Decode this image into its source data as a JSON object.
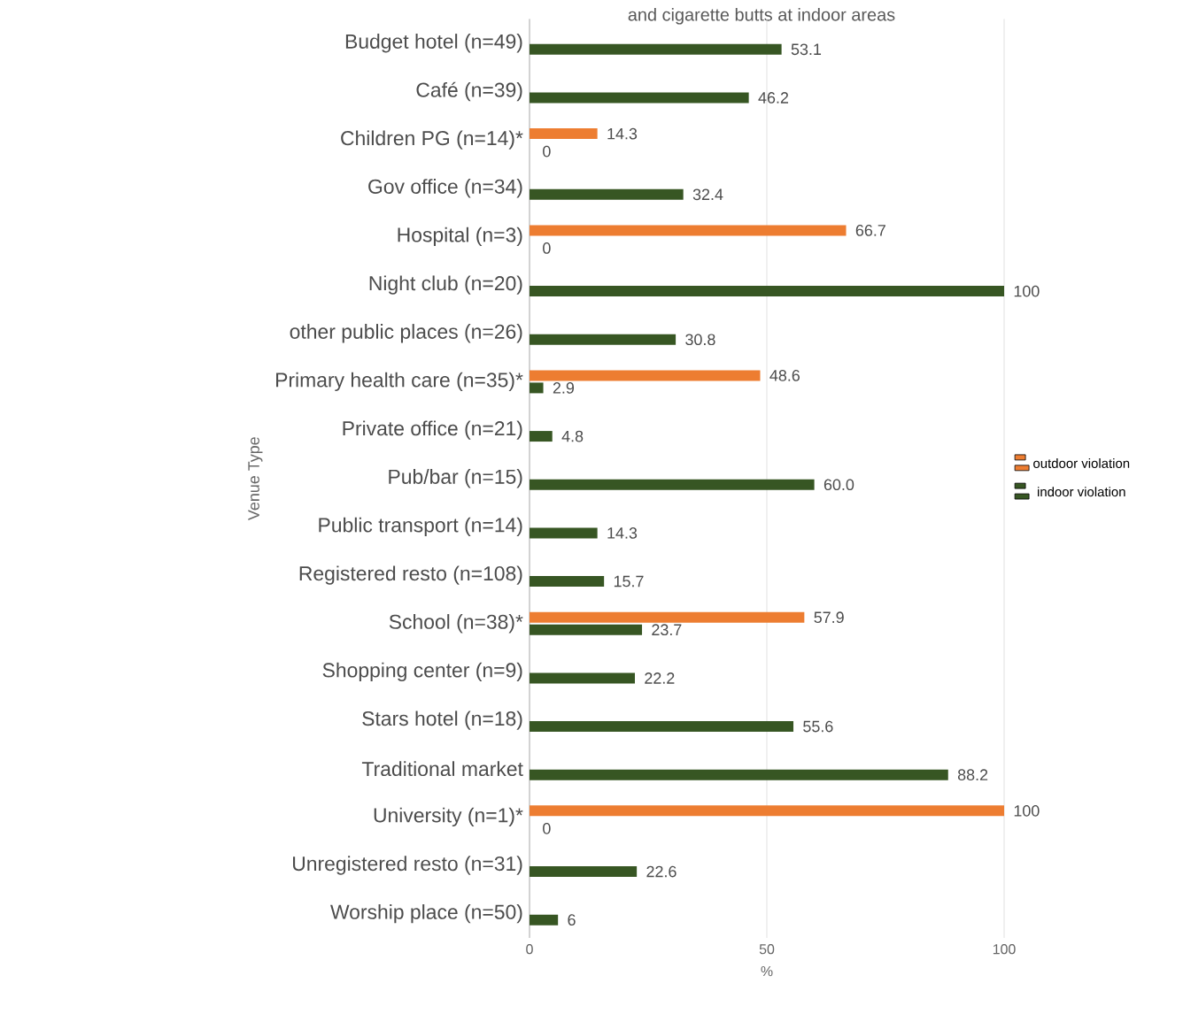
{
  "chart_data": {
    "type": "bar",
    "orientation": "horizontal",
    "title": "and cigarette butts at indoor areas",
    "xlabel": "%",
    "ylabel": "Venue Type",
    "categories": [
      "Budget hotel (n=49)",
      "Café (n=39)",
      "Children PG (n=14)*",
      "Gov office (n=34)",
      "Hospital (n=3)",
      "Night club (n=20)",
      "other public places (n=26)",
      "Primary health care (n=35)*",
      "Private office (n=21)",
      "Pub/bar (n=15)",
      "Public transport (n=14)",
      "Registered resto (n=108)",
      "School (n=38)*",
      "Shopping center (n=9)",
      "Stars hotel (n=18)",
      "Traditional market",
      "University (n=1)*",
      "Unregistered resto (n=31)",
      "Worship place (n=50)"
    ],
    "series": [
      {
        "name": "outdoor violation",
        "color": "#ed7d31",
        "values": [
          null,
          null,
          14.3,
          null,
          66.7,
          null,
          null,
          48.6,
          null,
          null,
          null,
          null,
          57.9,
          null,
          null,
          null,
          100,
          null,
          null
        ],
        "value_labels": [
          null,
          null,
          "14.3",
          null,
          "66.7",
          null,
          null,
          "48.6",
          null,
          null,
          null,
          null,
          "57.9",
          null,
          null,
          null,
          "100",
          null,
          null
        ]
      },
      {
        "name": "indoor violation",
        "color": "#375623",
        "values": [
          53.1,
          46.2,
          0,
          32.4,
          0,
          100,
          30.8,
          2.9,
          4.8,
          60.0,
          14.3,
          15.7,
          23.7,
          22.2,
          55.6,
          88.2,
          0,
          22.6,
          6
        ],
        "value_labels": [
          "53.1",
          "46.2",
          "0",
          "32.4",
          "0",
          "100",
          "30.8",
          "2.9",
          "4.8",
          "60.0",
          "14.3",
          "15.7",
          "23.7",
          "22.2",
          "55.6",
          "88.2",
          "0",
          "22.6",
          "6"
        ]
      }
    ],
    "xlim": [
      0,
      100
    ],
    "xticks": [
      0,
      50,
      100
    ],
    "grid": "x",
    "legend": "right"
  }
}
